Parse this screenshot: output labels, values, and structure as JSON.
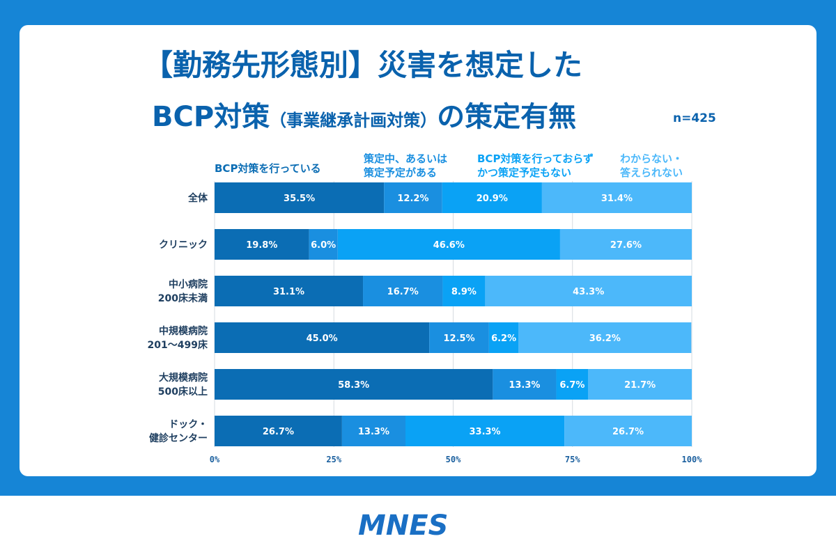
{
  "title": {
    "line1": "【勤務先形態別】災害を想定した",
    "line2_main": "BCP対策",
    "line2_paren": "（事業継承計画対策）",
    "line2_tail": "の策定有無",
    "n": "n=425"
  },
  "colors": {
    "background": "#1685d6",
    "title": "#0a62ad",
    "series": [
      "#0b6db4",
      "#1a8fe0",
      "#0aa2f5",
      "#4cb8fa"
    ],
    "legend_text": [
      "#0b6db4",
      "#1a8fe0",
      "#0aa2f5",
      "#4cb8fa"
    ]
  },
  "chart_data": {
    "type": "bar",
    "orientation": "horizontal",
    "stacked": true,
    "categories": [
      "全体",
      "クリニック",
      "中小病院\n200床未満",
      "中規模病院\n201～499床",
      "大規模病院\n500床以上",
      "ドック・\n健診センター"
    ],
    "series": [
      {
        "name": "BCP対策を行っている",
        "values": [
          35.5,
          19.8,
          31.1,
          45.0,
          58.3,
          26.7
        ]
      },
      {
        "name": "策定中、あるいは\n策定予定がある",
        "values": [
          12.2,
          6.0,
          16.7,
          12.5,
          13.3,
          13.3
        ]
      },
      {
        "name": "BCP対策を行っておらず\nかつ策定予定もない",
        "values": [
          20.9,
          46.6,
          8.9,
          6.2,
          6.7,
          33.3
        ]
      },
      {
        "name": "わからない・\n答えられない",
        "values": [
          31.4,
          27.6,
          43.3,
          36.2,
          21.7,
          26.7
        ]
      }
    ],
    "value_suffix": "%",
    "xlim": [
      0,
      100
    ],
    "xticks": [
      "0%",
      "25%",
      "50%",
      "75%",
      "100%"
    ],
    "grid": true,
    "legend_position": "top"
  },
  "logo": {
    "text": "MNES"
  }
}
